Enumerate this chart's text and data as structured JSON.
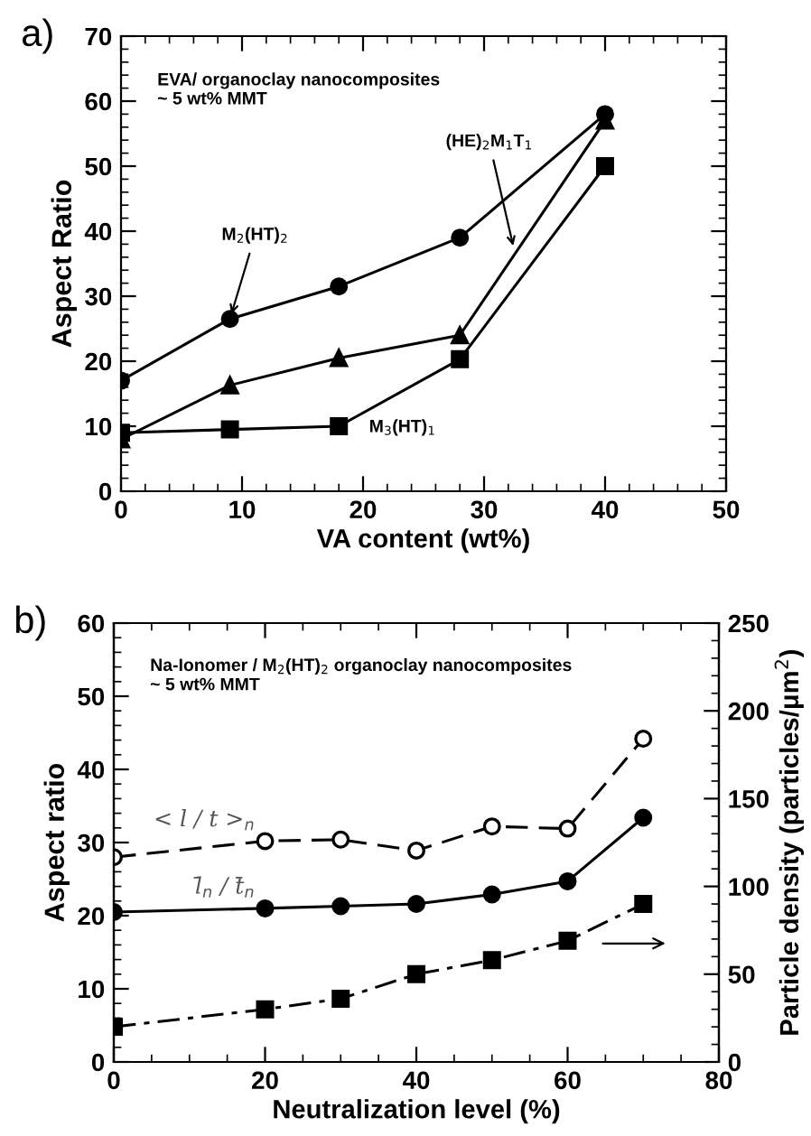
{
  "chart_data": [
    {
      "type": "line",
      "title": "a)",
      "xlabel": "VA content (wt%)",
      "ylabel": "Aspect Ratio",
      "xlim": [
        0,
        50
      ],
      "ylim": [
        0,
        70
      ],
      "xticks": [
        0,
        10,
        20,
        30,
        40,
        50
      ],
      "yticks": [
        0,
        10,
        20,
        30,
        40,
        50,
        60,
        70
      ],
      "grid": false,
      "legend": false,
      "line_style": "solid",
      "annotations": [
        "EVA/ organoclay nanocomposites\n~ 5 wt% MMT",
        {
          "text": "M$_{2}$(HT)$_{2}$",
          "x": 9,
          "y": 26.5
        },
        {
          "text": "(HE)$_{2}$M$_{1}$T$_{1}$",
          "x": 32.5,
          "y": 37
        },
        "M$_{3}$(HT)$_{1}$"
      ],
      "series": [
        {
          "color": "#000000",
          "marker": "circle",
          "x": [
            0,
            9,
            18,
            28,
            40
          ],
          "values": [
            17,
            26.5,
            31.5,
            39,
            58
          ]
        },
        {
          "color": "#000000",
          "marker": "triangle",
          "x": [
            0,
            9,
            18,
            28,
            40
          ],
          "values": [
            8,
            16.3,
            20.5,
            24,
            57
          ]
        },
        {
          "color": "#000000",
          "marker": "square",
          "x": [
            0,
            9,
            18,
            28,
            40
          ],
          "values": [
            9,
            9.5,
            10,
            20.3,
            50
          ]
        }
      ]
    },
    {
      "type": "line",
      "title": "b)",
      "xlabel": "Neutralization level (%)",
      "ylabel": "Aspect ratio",
      "y2label": "Particle density (particles/μm$^{2}$)",
      "xlim": [
        0,
        80
      ],
      "ylim": [
        0,
        60
      ],
      "y2lim": [
        0,
        250
      ],
      "xticks": [
        0,
        20,
        40,
        60,
        80
      ],
      "yticks": [
        0,
        10,
        20,
        30,
        40,
        50,
        60
      ],
      "y2ticks": [
        0,
        50,
        100,
        150,
        200,
        250
      ],
      "grid": false,
      "legend": false,
      "annotations": [
        "Na-Ionomer / M$_{2}$(HT)$_{2}$ organoclay nanocomposites\n~ 5 wt% MMT"
      ],
      "series": [
        {
          "name": "< l / t >$_{n}$",
          "color": "#000000",
          "marker": "circle-open",
          "line_style": "dashed",
          "x": [
            0,
            20,
            30,
            40,
            50,
            60,
            70
          ],
          "values": [
            28,
            30.2,
            30.4,
            28.9,
            32.2,
            31.9,
            44.2
          ]
        },
        {
          "name": "l̄$_{n}$ / t̄$_{n}$",
          "color": "#000000",
          "marker": "circle",
          "line_style": "solid",
          "x": [
            0,
            20,
            30,
            40,
            50,
            60,
            70
          ],
          "values": [
            20.5,
            21,
            21.3,
            21.6,
            22.9,
            24.7,
            33.4
          ]
        },
        {
          "color": "#000000",
          "marker": "square",
          "line_style": "dashdot",
          "axis": "y2",
          "x": [
            0,
            20,
            30,
            40,
            50,
            60,
            70
          ],
          "values": [
            20,
            30,
            36,
            50,
            58,
            69,
            90
          ]
        }
      ]
    }
  ]
}
